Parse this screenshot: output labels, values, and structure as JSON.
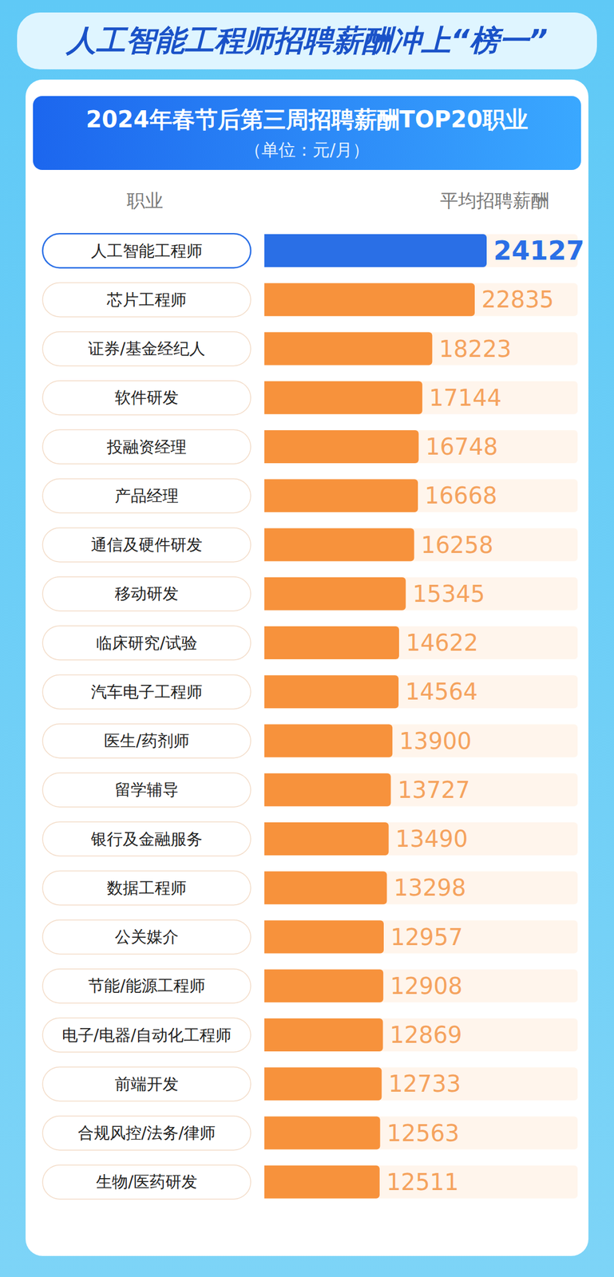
{
  "chart_data": {
    "type": "bar",
    "orientation": "horizontal",
    "title": "人工智能工程师招聘薪酬冲上“榜一”",
    "subtitle": "2024年春节后第三周招聘薪酬TOP20职业",
    "unit_label": "（单位：元/月）",
    "y_label": "职业",
    "x_label": "平均招聘薪酬",
    "categories": [
      "人工智能工程师",
      "芯片工程师",
      "证券/基金经纪人",
      "软件研发",
      "投融资经理",
      "产品经理",
      "通信及硬件研发",
      "移动研发",
      "临床研究/试验",
      "汽车电子工程师",
      "医生/药剂师",
      "留学辅导",
      "银行及金融服务",
      "数据工程师",
      "公关媒介",
      "节能/能源工程师",
      "电子/电器/自动化工程师",
      "前端开发",
      "合规风控/法务/律师",
      "生物/医药研发"
    ],
    "values": [
      24127,
      22835,
      18223,
      17144,
      16748,
      16668,
      16258,
      15345,
      14622,
      14564,
      13900,
      13727,
      13490,
      13298,
      12957,
      12908,
      12869,
      12733,
      12563,
      12511
    ],
    "colors": [
      "#2a6fe6",
      "#f7923c",
      "#f7923c",
      "#f7923c",
      "#f7923c",
      "#f7923c",
      "#f7923c",
      "#f7923c",
      "#f7923c",
      "#f7923c",
      "#f7923c",
      "#f7923c",
      "#f7923c",
      "#f7923c",
      "#f7923c",
      "#f7923c",
      "#f7923c",
      "#f7923c",
      "#f7923c",
      "#f7923c"
    ],
    "xlim": [
      0,
      34000
    ],
    "tick_labels": false,
    "data_labels": true,
    "grid": false
  }
}
